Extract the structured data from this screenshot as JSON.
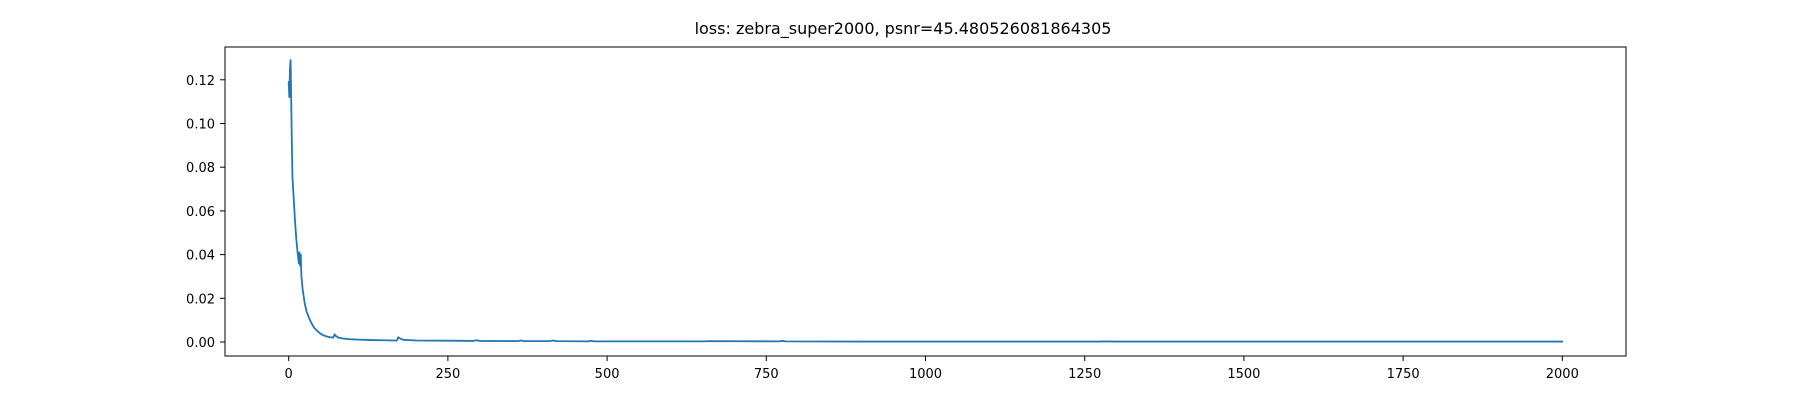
{
  "chart_data": {
    "type": "line",
    "title": "loss: zebra_super2000, psnr=45.480526081864305",
    "xlabel": "",
    "ylabel": "",
    "xlim": [
      -100,
      2100
    ],
    "ylim": [
      -0.0064,
      0.135
    ],
    "grid": false,
    "x_ticks": [
      0,
      250,
      500,
      750,
      1000,
      1250,
      1500,
      1750,
      2000
    ],
    "x_tick_labels": [
      "0",
      "250",
      "500",
      "750",
      "1000",
      "1250",
      "1500",
      "1750",
      "2000"
    ],
    "y_ticks": [
      0.0,
      0.02,
      0.04,
      0.06,
      0.08,
      0.1,
      0.12
    ],
    "y_tick_labels": [
      "0.00",
      "0.02",
      "0.04",
      "0.06",
      "0.08",
      "0.10",
      "0.12"
    ],
    "series": [
      {
        "color": "#1f77b4",
        "x": [
          0,
          1,
          2,
          3,
          4,
          5,
          6,
          8,
          10,
          12,
          14,
          16,
          17,
          18,
          19,
          20,
          22,
          25,
          28,
          32,
          36,
          40,
          45,
          50,
          55,
          60,
          65,
          70,
          72,
          74,
          78,
          85,
          95,
          110,
          130,
          150,
          165,
          170,
          172,
          175,
          180,
          200,
          250,
          290,
          295,
          300,
          360,
          365,
          370,
          410,
          415,
          420,
          470,
          475,
          480,
          600,
          650,
          660,
          770,
          775,
          780,
          900,
          1000,
          1100,
          1200,
          1275,
          1280,
          1300,
          1400,
          1500,
          1600,
          1700,
          1750,
          1800,
          1900,
          1950,
          2000
        ],
        "y": [
          0.119,
          0.112,
          0.125,
          0.129,
          0.11,
          0.09,
          0.075,
          0.065,
          0.055,
          0.047,
          0.041,
          0.036,
          0.041,
          0.035,
          0.04,
          0.03,
          0.024,
          0.018,
          0.014,
          0.011,
          0.0085,
          0.0065,
          0.005,
          0.0038,
          0.003,
          0.0025,
          0.0022,
          0.002,
          0.0035,
          0.0028,
          0.002,
          0.0016,
          0.0013,
          0.0011,
          0.0009,
          0.0008,
          0.0007,
          0.0007,
          0.0022,
          0.0016,
          0.001,
          0.0007,
          0.0006,
          0.0005,
          0.0008,
          0.0005,
          0.0004,
          0.0007,
          0.0004,
          0.0004,
          0.0007,
          0.0004,
          0.0003,
          0.0006,
          0.0003,
          0.0003,
          0.0003,
          0.0004,
          0.0003,
          0.0005,
          0.0003,
          0.0002,
          0.0002,
          0.0002,
          0.0002,
          0.0002,
          0.0003,
          0.0002,
          0.0002,
          0.0002,
          0.0002,
          0.0002,
          0.0002,
          0.0002,
          0.0002,
          0.0002,
          0.0002
        ]
      }
    ]
  }
}
